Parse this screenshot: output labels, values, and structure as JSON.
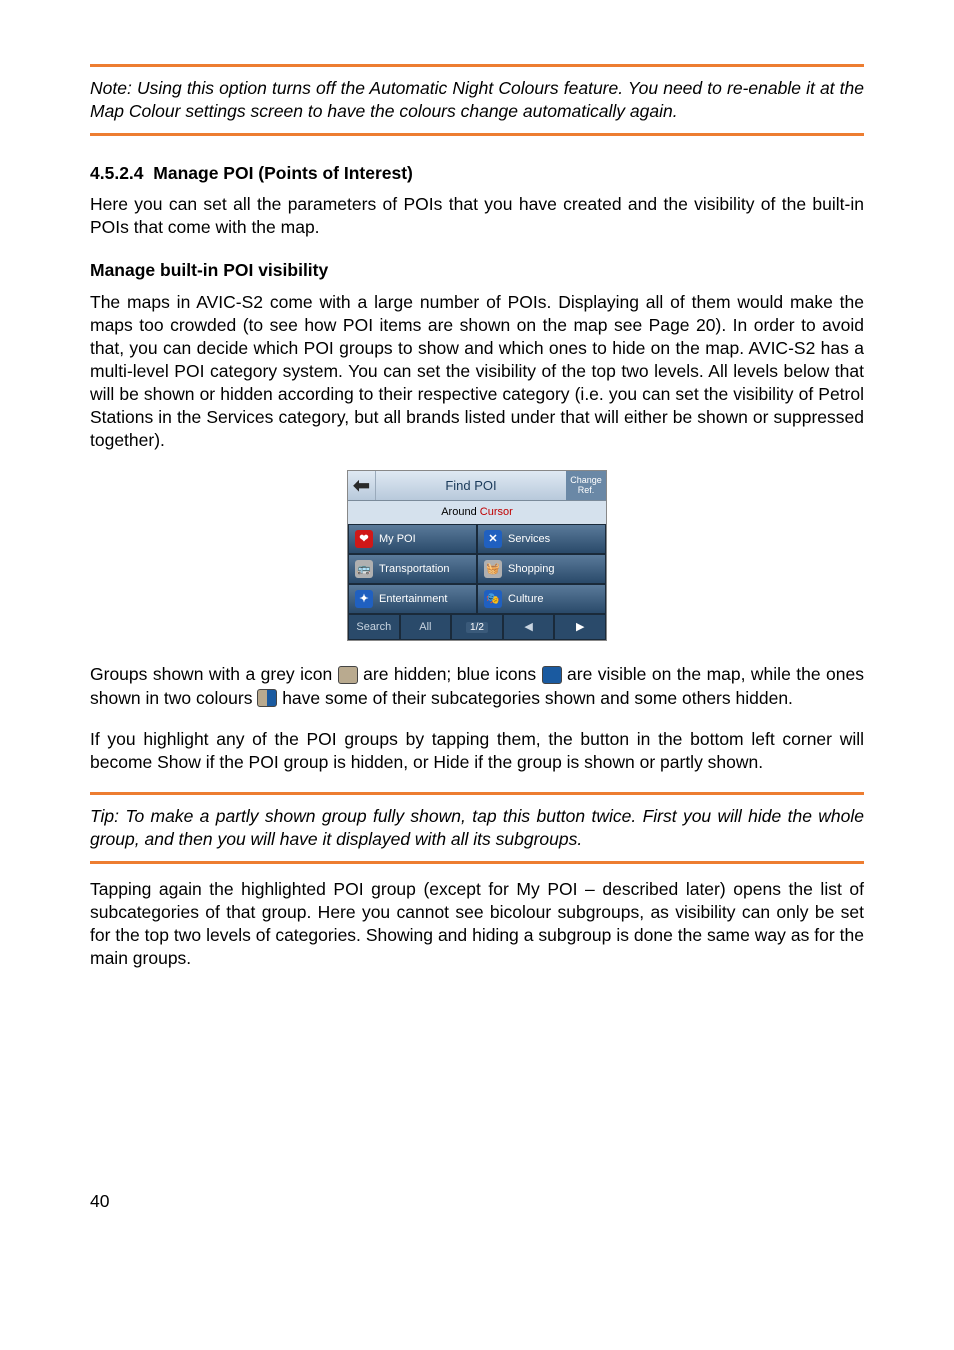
{
  "colors": {
    "orange_rule": "#ed7d31",
    "text": "#000000",
    "background": "#ffffff",
    "screenshot_bg": "#c9d8e8",
    "screenshot_dark": "#2a4a6a",
    "screenshot_red": "#c00000"
  },
  "note": {
    "text": "Note: Using this option turns off the Automatic Night Colours feature. You need to re-enable it at the Map Colour settings screen to have the colours change automatically again."
  },
  "section": {
    "number": "4.5.2.4",
    "title": "Manage POI (Points of Interest)",
    "intro": "Here you can set all the parameters of POIs that you have created and the visibility of the built-in POIs that come with the map."
  },
  "subsection": {
    "title": "Manage built-in POI visibility",
    "para1": "The maps in AVIC-S2 come with a large number of POIs. Displaying all of them would make the maps too crowded (to see how POI items are shown on the map see  Page 20). In order to avoid that, you can decide which POI groups to show and which ones to hide on the map. AVIC-S2 has a multi-level POI category system. You can set the visibility of the top two levels. All levels below that will be shown or hidden according to their respective category (i.e. you can set the visibility of Petrol Stations in the Services category, but all brands listed under that will either be shown or suppressed together)."
  },
  "screenshot": {
    "title": "Find POI",
    "change_ref": "Change Ref.",
    "around_label": "Around",
    "cursor_label": "Cursor",
    "categories": [
      {
        "label": "My POI",
        "icon_bg": "#d01818",
        "icon_glyph": "❤"
      },
      {
        "label": "Services",
        "icon_bg": "#2060c0",
        "icon_glyph": "✕"
      },
      {
        "label": "Transportation",
        "icon_bg": "#b0b0b0",
        "icon_glyph": "🚌"
      },
      {
        "label": "Shopping",
        "icon_bg": "#b0b0b0",
        "icon_glyph": "🧺"
      },
      {
        "label": "Entertainment",
        "icon_bg": "#2060c0",
        "icon_glyph": "✦"
      },
      {
        "label": "Culture",
        "icon_bg": "#2060c0",
        "icon_glyph": "🎭"
      }
    ],
    "footer": {
      "search": "Search",
      "all": "All",
      "page": "1/2"
    }
  },
  "icons_para": {
    "seg1": "Groups shown with a grey icon ",
    "seg2": " are hidden; blue icons ",
    "seg3": " are visible on the map, while the ones shown in two colours ",
    "seg4": " have some of their subcategories shown and some others hidden.",
    "grey_icon_bg": "#b9aa8f",
    "blue_icon_bg": "#1a5aa0",
    "bicolour_left": "#b9aa8f",
    "bicolour_right": "#1a5aa0"
  },
  "para_highlight": "If you highlight any of the POI groups by tapping them, the button in the bottom left corner will become Show if the POI group is hidden, or Hide if the group is shown or partly shown.",
  "tip": {
    "text": "Tip: To make a partly shown group fully shown, tap this button twice. First you will hide the whole group, and then you will have it displayed with all its subgroups."
  },
  "para_tapping": "Tapping again the highlighted POI group (except for My POI – described later) opens the list of subcategories of that group. Here you cannot see bicolour subgroups, as visibility can only be set for the top two levels of categories. Showing and hiding a subgroup is done the same way as for the main groups.",
  "page_number": "40"
}
